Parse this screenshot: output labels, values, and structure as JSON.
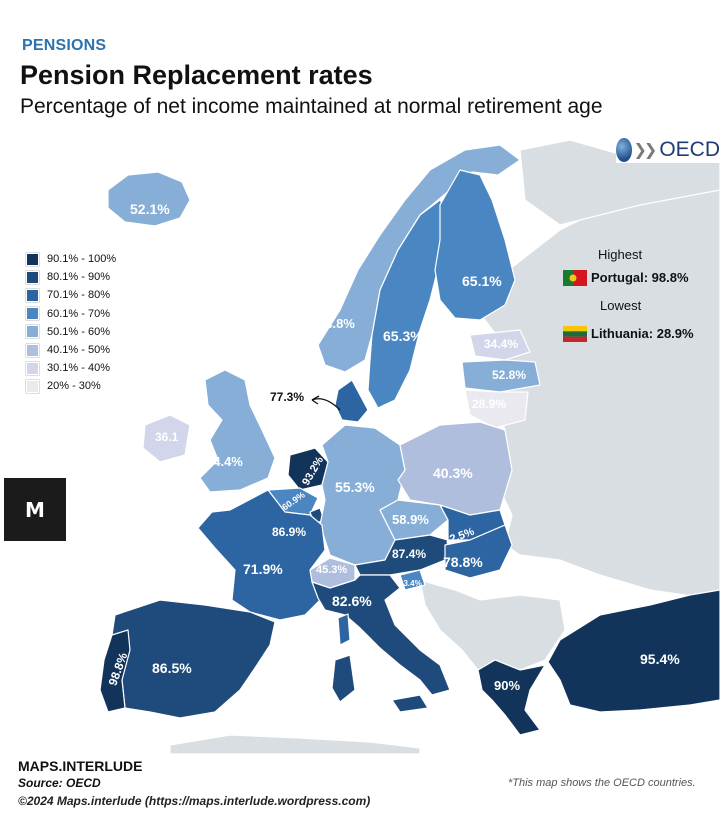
{
  "header": {
    "kicker": "PENSIONS",
    "title": "Pension Replacement rates",
    "subtitle": "Percentage of net income maintained at normal retirement age"
  },
  "logo": {
    "text": "OECD",
    "icon": "oecd-globe-icon"
  },
  "legend": {
    "items": [
      {
        "label": "90.1% - 100%",
        "color": "#13345a"
      },
      {
        "label": "80.1% - 90%",
        "color": "#1f4b7c"
      },
      {
        "label": "70.1% - 80%",
        "color": "#2d65a3"
      },
      {
        "label": "60.1% - 70%",
        "color": "#4a86c2"
      },
      {
        "label": "50.1% - 60%",
        "color": "#86aed6"
      },
      {
        "label": "40.1% - 50%",
        "color": "#b0bedd"
      },
      {
        "label": "30.1% - 40%",
        "color": "#d3d6ea"
      },
      {
        "label": "20% - 30%",
        "color": "#e9e9ef"
      }
    ]
  },
  "highlights": {
    "highest_heading": "Highest",
    "highest_value": "Portugal: 98.8%",
    "lowest_heading": "Lowest",
    "lowest_value": "Lithuania: 28.9%"
  },
  "map_labels": {
    "iceland": "52.1%",
    "norway": "54.8%",
    "sweden": "65.3%",
    "finland": "65.1%",
    "estonia": "34.4%",
    "latvia": "52.8%",
    "lithuania": "28.9%",
    "denmark": "77.3%",
    "ireland": "36.1",
    "uk": "54.4%",
    "netherlands": "93.2%",
    "belgium": "60.9%",
    "luxembourg": "86.9%",
    "germany": "55.3%",
    "poland": "40.3%",
    "czechia": "58.9%",
    "slovakia": "72.5%",
    "austria": "87.4%",
    "hungary": "78.8%",
    "slovenia": "63.4%",
    "switzerland": "45.3%",
    "france": "71.9%",
    "italy": "82.6%",
    "spain": "86.5%",
    "portugal": "98.8%",
    "greece": "90%",
    "turkey": "95.4%"
  },
  "colors": {
    "non_oecd": "#d9dee2",
    "sea": "#ffffff",
    "border": "#ffffff"
  },
  "footer": {
    "brand": "MAPS.INTERLUDE",
    "source": "Source: OECD",
    "copyright": "©2024 Maps.interlude (https://maps.interlude.wordpress.com)",
    "note": "*This map shows the OECD countries."
  },
  "watermark": {
    "letter": "M"
  }
}
